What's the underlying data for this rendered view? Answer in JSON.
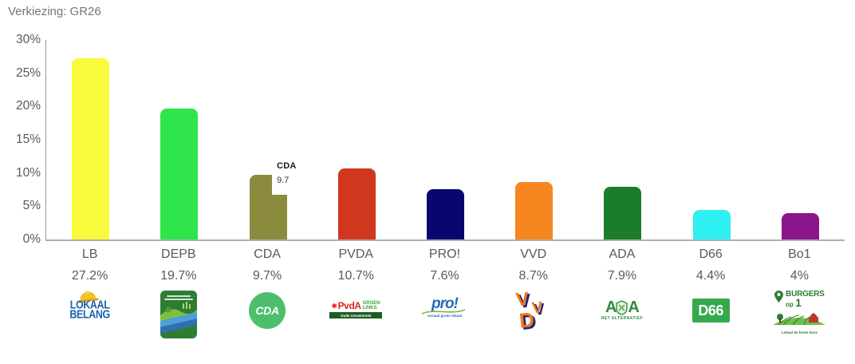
{
  "title": "Verkiezing: GR26",
  "chart_data": {
    "type": "bar",
    "title": "Verkiezing: GR26",
    "categories": [
      "LB",
      "DEPB",
      "CDA",
      "PVDA",
      "PRO!",
      "VVD",
      "ADA",
      "D66",
      "Bo1"
    ],
    "values": [
      27.2,
      19.7,
      9.7,
      10.7,
      7.6,
      8.7,
      7.9,
      4.4,
      4
    ],
    "value_labels": [
      "27.2%",
      "19.7%",
      "9.7%",
      "10.7%",
      "7.6%",
      "8.7%",
      "7.9%",
      "4.4%",
      "4%"
    ],
    "bar_colors": [
      "#FAFA3D",
      "#2EE54B",
      "#8B8B3E",
      "#D0371F",
      "#07076F",
      "#F6861F",
      "#1B7C2C",
      "#2EF0F0",
      "#8A168A"
    ],
    "ylim": [
      0,
      30
    ],
    "y_tick_labels": [
      "30%",
      "25%",
      "20%",
      "15%",
      "10%",
      "5%",
      "0%"
    ],
    "grid": false,
    "legend": false,
    "annotation": {
      "category": "CDA",
      "label": "CDA",
      "value": "9.7"
    }
  },
  "logos": {
    "lb": {
      "line1": "LOKAAL",
      "line2": "BELANG"
    },
    "cda": {
      "text": "CDA"
    },
    "pvda": {
      "star": "✱",
      "main": "PvdA",
      "groen": "GROEN",
      "links": "LINKS",
      "sub": "Oude IJsselstreek"
    },
    "pro": {
      "text": "pro!",
      "tagline": "sociaal groen lokaal"
    },
    "vvd": {
      "v1": "V",
      "v2": "V",
      "d": "D"
    },
    "ada": {
      "a1": "A",
      "a2": "A",
      "sub": "HET ALTERNATIEF"
    },
    "d66": {
      "text": "D66"
    },
    "bo1": {
      "line1": "BURGERS",
      "line2": "op",
      "one": "1",
      "sub": "Lokaal de beste keus"
    }
  }
}
